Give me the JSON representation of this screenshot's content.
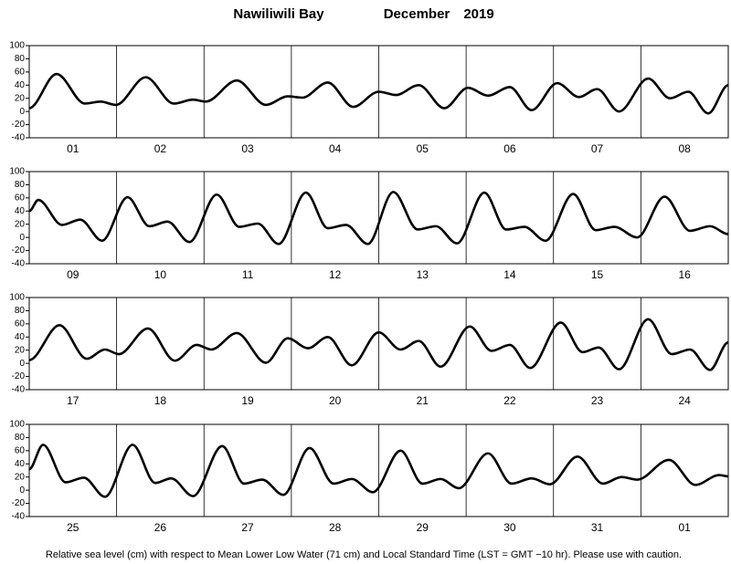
{
  "title": "Nawiliwili Bay",
  "month": "December",
  "year": "2019",
  "footnote": "Relative sea level (cm) with respect to Mean Lower Low Water (71 cm) and Local Standard Time (LST = GMT −10 hr). Please use with caution.",
  "chart_data": [
    {
      "type": "line",
      "categories": [
        "01",
        "02",
        "03",
        "04",
        "05",
        "06",
        "07",
        "08"
      ],
      "xlim": [
        0,
        192
      ],
      "ylim": [
        -40,
        100
      ],
      "yticks": [
        -40,
        -20,
        0,
        20,
        40,
        60,
        80,
        100
      ],
      "x": [
        0,
        7.5,
        15.3,
        19.6,
        23.8,
        32,
        39.7,
        45,
        48.5,
        57,
        65,
        71,
        75,
        82,
        89,
        96,
        100.7,
        107,
        114,
        120.5,
        126,
        132,
        138,
        145,
        151,
        156,
        162,
        170,
        176,
        181,
        186.5,
        192
      ],
      "series": [
        {
          "color": "#000000",
          "values": [
            5,
            57,
            12,
            15,
            10,
            52,
            12,
            18,
            15,
            47,
            10,
            23,
            21,
            44,
            7,
            30,
            25,
            40,
            5,
            36,
            24,
            37,
            2,
            43,
            22,
            34,
            0,
            50,
            20,
            30,
            -3,
            40
          ]
        }
      ]
    },
    {
      "type": "line",
      "categories": [
        "09",
        "10",
        "11",
        "12",
        "13",
        "14",
        "15",
        "16"
      ],
      "xlim": [
        0,
        192
      ],
      "ylim": [
        -40,
        100
      ],
      "yticks": [
        -40,
        -20,
        0,
        20,
        40,
        60,
        80,
        100
      ],
      "x": [
        0,
        2.5,
        9,
        14,
        20,
        27,
        33,
        38,
        44,
        51.5,
        57.7,
        62.8,
        68.5,
        76,
        82,
        87,
        93,
        100,
        106.7,
        111.7,
        117.5,
        125,
        131,
        136,
        141.8,
        149.4,
        155.6,
        160.7,
        167,
        174.5,
        181.5,
        187,
        192
      ],
      "series": [
        {
          "color": "#000000",
          "values": [
            40,
            57,
            19,
            27,
            -5,
            61,
            17,
            24,
            -7,
            65,
            16,
            21,
            -10,
            68,
            14,
            19,
            -10,
            69,
            12,
            17,
            -9,
            68,
            12,
            16,
            -5,
            66,
            11,
            16,
            0,
            62,
            10,
            17,
            5
          ]
        }
      ]
    },
    {
      "type": "line",
      "categories": [
        "17",
        "18",
        "19",
        "20",
        "21",
        "22",
        "23",
        "24"
      ],
      "xlim": [
        0,
        192
      ],
      "ylim": [
        -40,
        100
      ],
      "yticks": [
        -40,
        -20,
        0,
        20,
        40,
        60,
        80,
        100
      ],
      "x": [
        0,
        8.3,
        15.8,
        20.8,
        24.6,
        32.6,
        40,
        46,
        50,
        57,
        65,
        71,
        76.6,
        82,
        88.6,
        96,
        102,
        107,
        113,
        121,
        127,
        132,
        137.6,
        146,
        152,
        156.4,
        162,
        170,
        176.5,
        181.5,
        187,
        192
      ],
      "series": [
        {
          "color": "#000000",
          "values": [
            5,
            58,
            7,
            21,
            14,
            53,
            4,
            28,
            21,
            46,
            1,
            38,
            23,
            40,
            -3,
            47,
            21,
            34,
            -5,
            56,
            19,
            28,
            -7,
            62,
            17,
            24,
            -9,
            67,
            14,
            21,
            -10,
            32
          ]
        }
      ]
    },
    {
      "type": "line",
      "categories": [
        "25",
        "26",
        "27",
        "28",
        "29",
        "30",
        "31",
        "01"
      ],
      "xlim": [
        0,
        192
      ],
      "ylim": [
        -40,
        100
      ],
      "yticks": [
        -40,
        -20,
        0,
        20,
        40,
        60,
        80,
        100
      ],
      "x": [
        0,
        3.8,
        10,
        15,
        20.8,
        28.4,
        34.6,
        39,
        45,
        53,
        59,
        64,
        69.8,
        77,
        83.6,
        88.6,
        94.4,
        102,
        108,
        113,
        118,
        126,
        132.5,
        138,
        143,
        150.6,
        157.6,
        162.7,
        167,
        175.7,
        183,
        189.5,
        192
      ],
      "series": [
        {
          "color": "#000000",
          "values": [
            32,
            69,
            12,
            19,
            -10,
            69,
            11,
            18,
            -9,
            67,
            10,
            16,
            -7,
            64,
            10,
            17,
            -3,
            60,
            10,
            17,
            3,
            56,
            10,
            18,
            9,
            51,
            10,
            20,
            16,
            46,
            8,
            23,
            21
          ]
        }
      ]
    }
  ]
}
